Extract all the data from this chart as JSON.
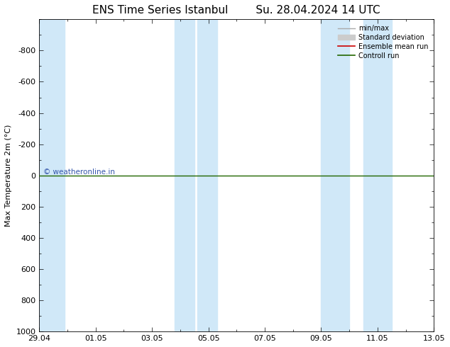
{
  "title_left": "ENS Time Series Istanbul",
  "title_right": "Su. 28.04.2024 14 UTC",
  "ylabel": "Max Temperature 2m (°C)",
  "ylim_top": -1000,
  "ylim_bottom": 1000,
  "yticks": [
    -800,
    -600,
    -400,
    -200,
    0,
    200,
    400,
    600,
    800,
    1000
  ],
  "xlim_start": 0,
  "xlim_end": 14,
  "xtick_labels": [
    "29.04",
    "01.05",
    "03.05",
    "05.05",
    "07.05",
    "09.05",
    "11.05",
    "13.05"
  ],
  "xtick_positions": [
    0,
    2,
    4,
    6,
    8,
    10,
    12,
    14
  ],
  "blue_bands": [
    [
      0.0,
      0.9
    ],
    [
      4.8,
      5.5
    ],
    [
      5.6,
      6.3
    ],
    [
      10.0,
      11.0
    ],
    [
      11.5,
      12.5
    ]
  ],
  "green_line_y": 0,
  "watermark": "© weatheronline.in",
  "watermark_color": "#3355aa",
  "bg_color": "#ffffff",
  "plot_bg_color": "#ffffff",
  "band_color": "#d0e8f8",
  "legend_items": [
    "min/max",
    "Standard deviation",
    "Ensemble mean run",
    "Controll run"
  ],
  "legend_line_color": "#aaaaaa",
  "legend_std_color": "#cccccc",
  "legend_ens_color": "#cc0000",
  "legend_ctrl_color": "#226600",
  "title_fontsize": 11,
  "axis_fontsize": 8,
  "tick_fontsize": 8
}
